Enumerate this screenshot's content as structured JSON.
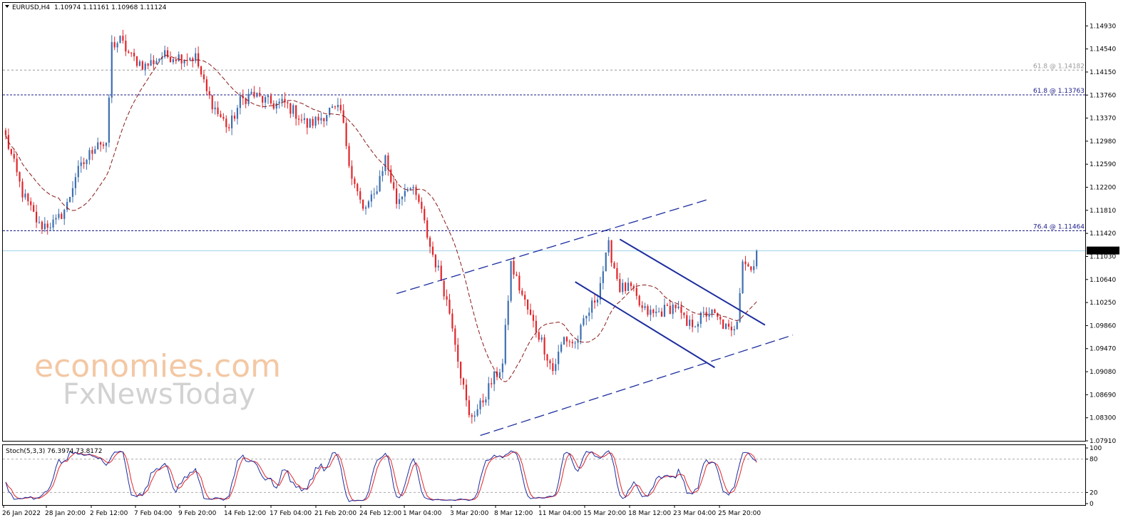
{
  "header": {
    "symbol": "EURUSD,H4",
    "ohlc": "1.10974 1.11161 1.10968 1.11124"
  },
  "watermark": {
    "line1": "economies.com",
    "line2": "FxNewsToday"
  },
  "current_price_label": "1.11124",
  "colors": {
    "bull": "#3d6fb0",
    "bear": "#e0262b",
    "ma": "#8b1a1a",
    "channel": "#1c2d9e",
    "fib": "#1c1c8a",
    "stoch_main": "#1c2d9e",
    "stoch_signal": "#e0262b",
    "current_line": "#9fd3e8"
  },
  "chart_data": [
    {
      "type": "candlestick",
      "title": "EURUSD,H4",
      "ylim": [
        1.0791,
        1.1532
      ],
      "y_ticks": [
        "1.14930",
        "1.14540",
        "1.14150",
        "1.13760",
        "1.13370",
        "1.12980",
        "1.12590",
        "1.12200",
        "1.11810",
        "1.11420",
        "1.11030",
        "1.10640",
        "1.10250",
        "1.09860",
        "1.09470",
        "1.09080",
        "1.08690",
        "1.08300",
        "1.07910"
      ],
      "x_ticks": [
        "26 Jan 2022",
        "28 Jan 20:00",
        "2 Feb 12:00",
        "7 Feb 04:00",
        "9 Feb 20:00",
        "14 Feb 12:00",
        "17 Feb 04:00",
        "21 Feb 20:00",
        "24 Feb 12:00",
        "1 Mar 04:00",
        "3 Mar 20:00",
        "8 Mar 12:00",
        "11 Mar 04:00",
        "15 Mar 20:00",
        "18 Mar 12:00",
        "23 Mar 04:00",
        "25 Mar 20:00"
      ],
      "last_price": 1.11124,
      "close_waypoints": [
        [
          0,
          1.1305
        ],
        [
          6,
          1.121
        ],
        [
          12,
          1.1155
        ],
        [
          18,
          1.116
        ],
        [
          22,
          1.119
        ],
        [
          25,
          1.124
        ],
        [
          29,
          1.1268
        ],
        [
          33,
          1.13
        ],
        [
          36,
          1.1285
        ],
        [
          38,
          1.146
        ],
        [
          41,
          1.1468
        ],
        [
          45,
          1.144
        ],
        [
          50,
          1.1425
        ],
        [
          56,
          1.1442
        ],
        [
          60,
          1.1442
        ],
        [
          64,
          1.144
        ],
        [
          68,
          1.144
        ],
        [
          72,
          1.138
        ],
        [
          76,
          1.1345
        ],
        [
          80,
          1.132
        ],
        [
          84,
          1.1365
        ],
        [
          88,
          1.1378
        ],
        [
          92,
          1.1368
        ],
        [
          96,
          1.136
        ],
        [
          100,
          1.1362
        ],
        [
          104,
          1.1345
        ],
        [
          108,
          1.1325
        ],
        [
          112,
          1.1335
        ],
        [
          116,
          1.135
        ],
        [
          120,
          1.1348
        ],
        [
          124,
          1.124
        ],
        [
          128,
          1.118
        ],
        [
          132,
          1.1205
        ],
        [
          136,
          1.127
        ],
        [
          140,
          1.1195
        ],
        [
          144,
          1.1225
        ],
        [
          148,
          1.1195
        ],
        [
          152,
          1.112
        ],
        [
          156,
          1.1065
        ],
        [
          160,
          1.099
        ],
        [
          163,
          1.0905
        ],
        [
          166,
          1.083
        ],
        [
          170,
          1.085
        ],
        [
          174,
          1.089
        ],
        [
          178,
          1.092
        ],
        [
          181,
          1.109
        ],
        [
          184,
          1.105
        ],
        [
          188,
          1.1
        ],
        [
          192,
          1.096
        ],
        [
          196,
          1.091
        ],
        [
          200,
          1.0965
        ],
        [
          204,
          1.0955
        ],
        [
          208,
          1.1
        ],
        [
          212,
          1.104
        ],
        [
          216,
          1.112
        ],
        [
          220,
          1.105
        ],
        [
          224,
          1.1048
        ],
        [
          228,
          1.1012
        ],
        [
          232,
          1.1005
        ],
        [
          236,
          1.1012
        ],
        [
          240,
          1.102
        ],
        [
          244,
          1.0985
        ],
        [
          248,
          1.0995
        ],
        [
          252,
          1.101
        ],
        [
          256,
          1.0992
        ],
        [
          260,
          1.0972
        ],
        [
          262,
          1.1
        ],
        [
          264,
          1.11
        ],
        [
          267,
          1.108
        ],
        [
          269,
          1.1112
        ]
      ],
      "moving_average": "dashed dark red line",
      "annotations": [
        {
          "label": "61.8 @ 1.14182",
          "price": 1.14182,
          "style": "dotted-gray"
        },
        {
          "label": "61.8 @ 1.13763",
          "price": 1.13763,
          "style": "dashed-navy"
        },
        {
          "label": "76.4 @ 1.11464",
          "price": 1.11464,
          "style": "dashed-navy"
        }
      ],
      "trendlines": [
        {
          "name": "upper-channel",
          "style": "dashed",
          "points": [
            [
              140,
              1.104
            ],
            [
              252,
              1.12
            ]
          ]
        },
        {
          "name": "lower-channel",
          "style": "dashed",
          "points": [
            [
              170,
              1.08
            ],
            [
              282,
              1.097
            ]
          ]
        },
        {
          "name": "falling-upper",
          "style": "solid",
          "points": [
            [
              220,
              1.1132
            ],
            [
              272,
              1.0987
            ]
          ]
        },
        {
          "name": "falling-lower",
          "style": "solid",
          "points": [
            [
              204,
              1.106
            ],
            [
              254,
              1.0915
            ]
          ]
        }
      ]
    },
    {
      "type": "line",
      "title": "Stoch(5,3,3) 76.3974 73.8172",
      "ylim": [
        0,
        100
      ],
      "y_ticks": [
        "100",
        "80",
        "20",
        "0"
      ],
      "levels": [
        80,
        20
      ],
      "series": [
        {
          "name": "main",
          "value": 76.3974
        },
        {
          "name": "signal",
          "value": 73.8172
        }
      ]
    }
  ]
}
